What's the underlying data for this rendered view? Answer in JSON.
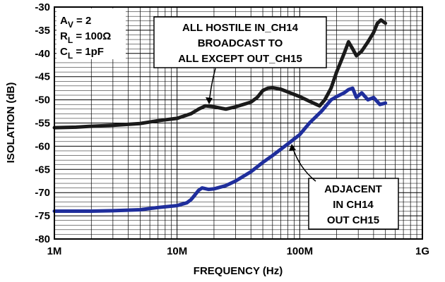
{
  "chart_data": {
    "type": "line",
    "xlabel": "FREQUENCY (Hz)",
    "ylabel": "ISOLATION (dB)",
    "xscale": "log",
    "xlim": [
      1000000,
      1000000000
    ],
    "ylim": [
      -80,
      -30
    ],
    "grid": true,
    "x_ticks": [
      {
        "value": 1000000,
        "label": "1M"
      },
      {
        "value": 10000000,
        "label": "10M"
      },
      {
        "value": 100000000,
        "label": "100M"
      },
      {
        "value": 1000000000,
        "label": "1G"
      }
    ],
    "y_ticks": [
      -30,
      -35,
      -40,
      -45,
      -50,
      -55,
      -60,
      -65,
      -70,
      -75,
      -80
    ],
    "conditions": {
      "av": {
        "symbol": "A",
        "sub": "V",
        "rest": " = 2"
      },
      "rl": {
        "symbol": "R",
        "sub": "L",
        "rest": " = 100Ω"
      },
      "cl": {
        "symbol": "C",
        "sub": "L",
        "rest": " = 1pF"
      }
    },
    "annotations": [
      {
        "lines": [
          "ALL HOSTILE IN_CH14",
          "BROADCAST TO",
          "ALL EXCEPT OUT_CH15"
        ]
      },
      {
        "lines": [
          "ADJACENT",
          "IN CH14",
          "OUT CH15"
        ]
      }
    ],
    "series": [
      {
        "color": "#1a1a1a",
        "x": [
          1000000,
          1500000,
          2000000,
          3000000,
          5000000,
          7000000,
          10000000,
          13000000,
          15000000,
          17000000,
          20000000,
          25000000,
          30000000,
          40000000,
          45000000,
          50000000,
          55000000,
          60000000,
          70000000,
          80000000,
          100000000,
          120000000,
          145000000,
          160000000,
          180000000,
          200000000,
          230000000,
          250000000,
          270000000,
          290000000,
          320000000,
          360000000,
          400000000,
          430000000,
          460000000,
          500000000
        ],
        "y": [
          -56,
          -55.9,
          -55.7,
          -55.5,
          -55.1,
          -54.5,
          -54,
          -53,
          -52,
          -51.3,
          -51.5,
          -52,
          -51.5,
          -50.5,
          -49.5,
          -48,
          -47.5,
          -47.4,
          -47.7,
          -48.3,
          -49.3,
          -50.3,
          -51.3,
          -50,
          -47.5,
          -44,
          -40,
          -37.5,
          -39,
          -40.5,
          -39.5,
          -37.5,
          -35.5,
          -33.5,
          -32.8,
          -33.5
        ]
      },
      {
        "color": "#1f2e9c",
        "x": [
          1000000,
          2000000,
          3000000,
          5000000,
          7000000,
          10000000,
          12000000,
          13000000,
          14000000,
          15000000,
          16000000,
          18000000,
          20000000,
          25000000,
          30000000,
          40000000,
          50000000,
          60000000,
          80000000,
          100000000,
          120000000,
          150000000,
          180000000,
          200000000,
          230000000,
          250000000,
          270000000,
          290000000,
          320000000,
          360000000,
          400000000,
          450000000,
          500000000
        ],
        "y": [
          -74,
          -74,
          -73.9,
          -73.7,
          -73.2,
          -72.8,
          -72.2,
          -71.5,
          -70.5,
          -69.5,
          -69,
          -69.3,
          -69.2,
          -68.5,
          -67.5,
          -65.5,
          -63.5,
          -62,
          -59.5,
          -57.5,
          -55,
          -52.5,
          -50,
          -49.3,
          -48.5,
          -47.8,
          -47.5,
          -49.5,
          -48.5,
          -50,
          -49.5,
          -51,
          -50.7
        ]
      }
    ]
  }
}
